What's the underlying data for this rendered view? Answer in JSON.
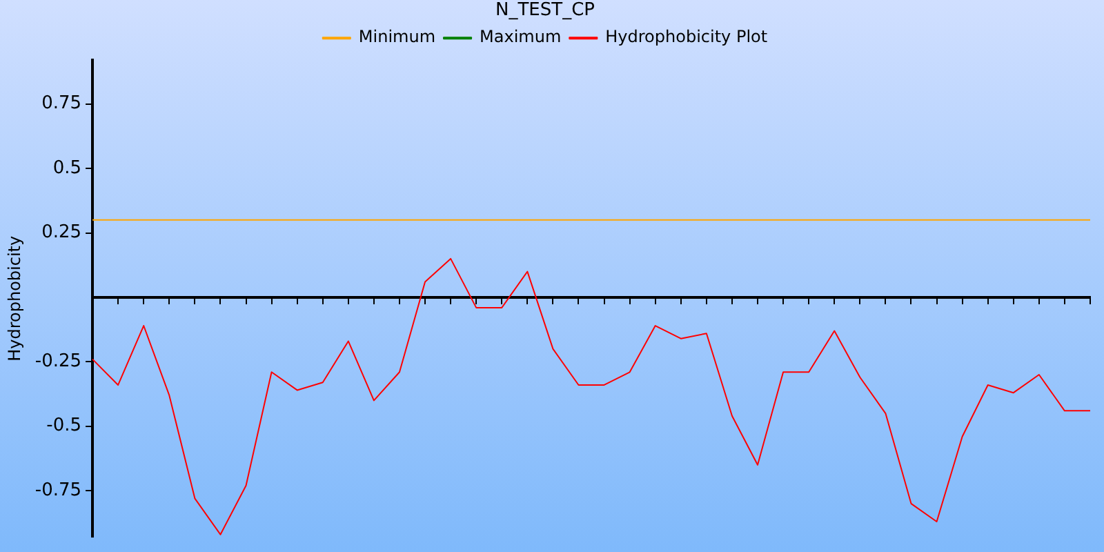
{
  "chart_data": {
    "type": "line",
    "title": "N_TEST_CP",
    "ylabel": "Hydrophobicity",
    "categories": [
      null,
      null,
      null,
      null,
      null,
      null,
      null,
      null,
      null,
      null,
      null,
      null,
      null,
      null,
      null,
      null,
      null,
      null,
      null,
      null,
      null,
      null,
      null,
      null,
      null,
      null,
      null,
      null,
      null,
      null,
      null,
      null,
      null,
      null,
      null,
      null,
      null,
      null,
      null,
      null
    ],
    "series": [
      {
        "name": "Minimum",
        "color": "#ffa500",
        "values": [
          0.3,
          0.3,
          0.3,
          0.3,
          0.3,
          0.3,
          0.3,
          0.3,
          0.3,
          0.3,
          0.3,
          0.3,
          0.3,
          0.3,
          0.3,
          0.3,
          0.3,
          0.3,
          0.3,
          0.3,
          0.3,
          0.3,
          0.3,
          0.3,
          0.3,
          0.3,
          0.3,
          0.3,
          0.3,
          0.3,
          0.3,
          0.3,
          0.3,
          0.3,
          0.3,
          0.3,
          0.3,
          0.3,
          0.3,
          0.3
        ]
      },
      {
        "name": "Maximum",
        "color": "#008000",
        "values": [
          null,
          null,
          null,
          null,
          null,
          null,
          null,
          null,
          null,
          null,
          null,
          null,
          null,
          null,
          null,
          null,
          null,
          null,
          null,
          null,
          null,
          null,
          null,
          null,
          null,
          null,
          null,
          null,
          null,
          null,
          null,
          null,
          null,
          null,
          null,
          null,
          null,
          null,
          null,
          null
        ]
      },
      {
        "name": "Hydrophobicity Plot",
        "color": "#ff0000",
        "values": [
          -0.24,
          -0.34,
          -0.11,
          -0.38,
          -0.78,
          -0.92,
          -0.73,
          -0.29,
          -0.36,
          -0.33,
          -0.17,
          -0.4,
          -0.29,
          0.06,
          0.15,
          -0.04,
          -0.04,
          0.1,
          -0.2,
          -0.34,
          -0.34,
          -0.29,
          -0.11,
          -0.16,
          -0.14,
          -0.46,
          -0.65,
          -0.29,
          -0.29,
          -0.13,
          -0.31,
          -0.45,
          -0.8,
          -0.87,
          -0.54,
          -0.34,
          -0.37,
          -0.3,
          -0.44,
          -0.44
        ]
      }
    ],
    "ylim": [
      -0.93,
      0.92
    ],
    "yticks": [
      -0.75,
      -0.5,
      -0.25,
      0.25,
      0.5,
      0.75
    ],
    "grid": false,
    "legend": "top",
    "marker": "none",
    "line_style": "solid"
  }
}
